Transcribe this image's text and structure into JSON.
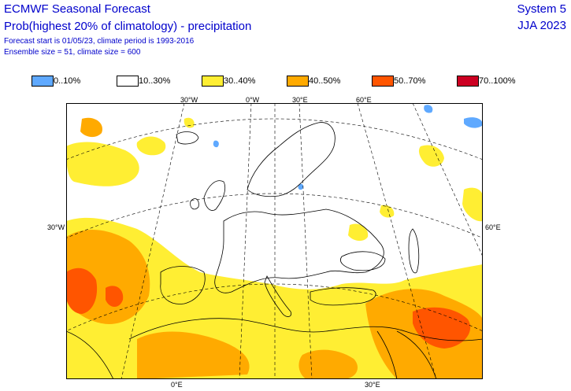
{
  "header": {
    "title": "ECMWF Seasonal Forecast",
    "subtitle": "Prob(highest 20% of climatology) - precipitation",
    "forecast_info": "Forecast start is 01/05/23, climate period is 1993-2016",
    "ensemble_info": "Ensemble size = 51, climate size = 600",
    "system": "System 5",
    "season": "JJA 2023"
  },
  "legend": [
    {
      "label": "0..10%",
      "color": "#5fa9ff"
    },
    {
      "label": "10..30%",
      "color": "#ffffff"
    },
    {
      "label": "30..40%",
      "color": "#ffee33"
    },
    {
      "label": "40..50%",
      "color": "#ffaa00"
    },
    {
      "label": "50..70%",
      "color": "#ff5500"
    },
    {
      "label": "70..100%",
      "color": "#cc0022"
    }
  ],
  "map": {
    "lon_labels_top": [
      "30°W",
      "0°W",
      "30°E",
      "60°E"
    ],
    "lon_labels_bottom": [
      "0°E",
      "30°E"
    ],
    "lat_label_left": "30°W",
    "lat_label_right": "60°E"
  }
}
